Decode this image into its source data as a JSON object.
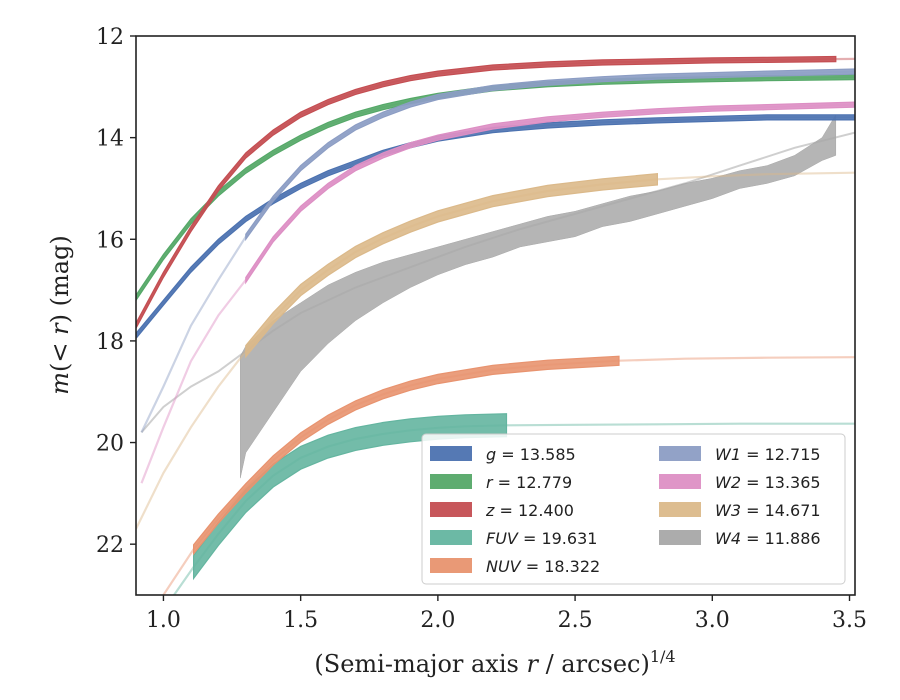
{
  "chart_data": {
    "type": "line",
    "xlabel": "(Semi-major axis r / arcsec)",
    "xlabel_parts": {
      "pre": "(Semi-major axis ",
      "var": "r",
      "post": " / arcsec)",
      "sup": "1/4"
    },
    "ylabel": "m(< r) (mag)",
    "ylabel_parts": {
      "m": "m",
      "mid": "(< ",
      "r": "r",
      "post": ") (mag)"
    },
    "xlim": [
      0.9,
      3.52
    ],
    "ylim": [
      12,
      23
    ],
    "y_inverted": true,
    "xticks": [
      1.0,
      1.5,
      2.0,
      2.5,
      3.0,
      3.5
    ],
    "xtick_labels": [
      "1.0",
      "1.5",
      "2.0",
      "2.5",
      "3.0",
      "3.5"
    ],
    "yticks": [
      12,
      14,
      16,
      18,
      20,
      22
    ],
    "ytick_labels": [
      "12",
      "14",
      "16",
      "18",
      "20",
      "22"
    ],
    "grid": false,
    "legend_position": "lower-right",
    "legend_columns": 2,
    "series": [
      {
        "name": "g",
        "total": "13.585",
        "label": "g = 13.585",
        "color": "#4c72b0",
        "band": 0.1,
        "x_solid_end": 3.52,
        "x": [
          0.9,
          1.0,
          1.1,
          1.2,
          1.3,
          1.4,
          1.5,
          1.6,
          1.7,
          1.8,
          1.9,
          2.0,
          2.2,
          2.4,
          2.6,
          2.8,
          3.0,
          3.2,
          3.52
        ],
        "y": [
          17.9,
          17.25,
          16.6,
          16.05,
          15.6,
          15.25,
          14.95,
          14.7,
          14.5,
          14.3,
          14.15,
          14.02,
          13.85,
          13.76,
          13.7,
          13.66,
          13.63,
          13.6,
          13.6
        ]
      },
      {
        "name": "r",
        "total": "12.779",
        "label": "r = 12.779",
        "color": "#55a868",
        "band": 0.1,
        "x_solid_end": 3.52,
        "x": [
          0.9,
          1.0,
          1.1,
          1.2,
          1.3,
          1.4,
          1.5,
          1.6,
          1.7,
          1.8,
          1.9,
          2.0,
          2.2,
          2.4,
          2.6,
          2.8,
          3.0,
          3.2,
          3.52
        ],
        "y": [
          17.15,
          16.35,
          15.65,
          15.1,
          14.65,
          14.3,
          14.0,
          13.75,
          13.55,
          13.4,
          13.28,
          13.18,
          13.03,
          12.95,
          12.9,
          12.87,
          12.85,
          12.83,
          12.81
        ]
      },
      {
        "name": "z",
        "total": "12.400",
        "label": "z = 12.400",
        "color": "#c44e52",
        "band": 0.1,
        "x_solid_end": 3.45,
        "x": [
          0.9,
          1.0,
          1.1,
          1.2,
          1.3,
          1.4,
          1.5,
          1.6,
          1.7,
          1.8,
          1.9,
          2.0,
          2.2,
          2.4,
          2.6,
          2.8,
          3.0,
          3.2,
          3.52
        ],
        "y": [
          17.7,
          16.7,
          15.8,
          15.0,
          14.35,
          13.9,
          13.55,
          13.3,
          13.1,
          12.95,
          12.83,
          12.74,
          12.62,
          12.56,
          12.52,
          12.5,
          12.48,
          12.47,
          12.45
        ]
      },
      {
        "name": "FUV",
        "total": "19.631",
        "label": "FUV = 19.631",
        "color": "#64b5a0",
        "band": 0.45,
        "x_solid_start": 1.11,
        "x_solid_end": 2.25,
        "x": [
          0.9,
          1.0,
          1.11,
          1.2,
          1.3,
          1.4,
          1.5,
          1.6,
          1.7,
          1.8,
          1.9,
          2.0,
          2.1,
          2.25,
          2.5,
          2.8,
          3.1,
          3.52
        ],
        "y": [
          24.0,
          23.3,
          22.45,
          21.8,
          21.15,
          20.65,
          20.3,
          20.08,
          19.93,
          19.83,
          19.76,
          19.71,
          19.68,
          19.66,
          19.65,
          19.64,
          19.63,
          19.63
        ]
      },
      {
        "name": "NUV",
        "total": "18.322",
        "label": "NUV = 18.322",
        "color": "#e8936f",
        "band": 0.18,
        "x_solid_start": 1.11,
        "x_solid_end": 2.66,
        "x": [
          0.9,
          1.0,
          1.11,
          1.2,
          1.3,
          1.4,
          1.5,
          1.6,
          1.7,
          1.8,
          1.9,
          2.0,
          2.2,
          2.4,
          2.66,
          2.9,
          3.2,
          3.52
        ],
        "y": [
          23.8,
          23.0,
          22.1,
          21.5,
          20.9,
          20.35,
          19.9,
          19.55,
          19.27,
          19.05,
          18.88,
          18.75,
          18.57,
          18.47,
          18.39,
          18.35,
          18.33,
          18.32
        ]
      },
      {
        "name": "W1",
        "total": "12.715",
        "label": "W1 = 12.715",
        "color": "#8c9dc4",
        "band": 0.1,
        "x_solid_start": 1.3,
        "x_solid_end": 3.52,
        "x": [
          0.92,
          1.0,
          1.1,
          1.2,
          1.3,
          1.4,
          1.5,
          1.6,
          1.7,
          1.8,
          1.9,
          2.0,
          2.2,
          2.4,
          2.6,
          2.8,
          3.0,
          3.2,
          3.52
        ],
        "y": [
          19.8,
          18.9,
          17.7,
          16.8,
          15.95,
          15.2,
          14.6,
          14.15,
          13.8,
          13.55,
          13.35,
          13.2,
          13.02,
          12.92,
          12.85,
          12.8,
          12.77,
          12.74,
          12.7
        ]
      },
      {
        "name": "W2",
        "total": "13.365",
        "label": "W2 = 13.365",
        "color": "#dd8fc4",
        "band": 0.1,
        "x_solid_start": 1.3,
        "x_solid_end": 3.52,
        "x": [
          0.92,
          1.0,
          1.1,
          1.2,
          1.3,
          1.4,
          1.5,
          1.6,
          1.7,
          1.8,
          1.9,
          2.0,
          2.2,
          2.4,
          2.6,
          2.8,
          3.0,
          3.2,
          3.52
        ],
        "y": [
          20.8,
          19.7,
          18.4,
          17.5,
          16.8,
          16.0,
          15.4,
          14.95,
          14.6,
          14.35,
          14.15,
          14.0,
          13.78,
          13.64,
          13.55,
          13.48,
          13.43,
          13.4,
          13.35
        ]
      },
      {
        "name": "W3",
        "total": "14.671",
        "label": "W3 = 14.671",
        "color": "#dbb98a",
        "band": 0.22,
        "x_solid_start": 1.3,
        "x_solid_end": 2.8,
        "x": [
          0.9,
          1.0,
          1.1,
          1.2,
          1.3,
          1.4,
          1.5,
          1.6,
          1.7,
          1.8,
          1.9,
          2.0,
          2.2,
          2.4,
          2.6,
          2.8,
          3.0,
          3.2,
          3.52
        ],
        "y": [
          21.7,
          20.6,
          19.7,
          18.9,
          18.2,
          17.55,
          17.0,
          16.6,
          16.25,
          15.98,
          15.75,
          15.55,
          15.25,
          15.05,
          14.92,
          14.82,
          14.76,
          14.72,
          14.69
        ]
      }
    ],
    "w4": {
      "name": "W4",
      "total": "11.886",
      "label": "W4 = 11.886",
      "color": "#a8a8a8",
      "faint_x": [
        0.92,
        1.0,
        1.1,
        1.2,
        1.3,
        1.4,
        1.5,
        1.7,
        1.9,
        2.1,
        2.3,
        2.5,
        2.7,
        2.9,
        3.1,
        3.3,
        3.52
      ],
      "faint_y": [
        19.8,
        19.3,
        18.9,
        18.6,
        18.2,
        17.8,
        17.45,
        16.95,
        16.55,
        16.15,
        15.8,
        15.5,
        15.2,
        14.9,
        14.55,
        14.2,
        13.9
      ],
      "band_x": [
        1.28,
        1.3,
        1.4,
        1.5,
        1.6,
        1.7,
        1.8,
        1.9,
        2.0,
        2.1,
        2.2,
        2.3,
        2.4,
        2.5,
        2.6,
        2.7,
        2.8,
        2.9,
        3.0,
        3.1,
        3.2,
        3.3,
        3.4,
        3.45
      ],
      "band_upper": [
        18.3,
        18.1,
        17.6,
        17.25,
        16.9,
        16.65,
        16.45,
        16.3,
        16.15,
        16.0,
        15.85,
        15.7,
        15.55,
        15.45,
        15.3,
        15.15,
        15.05,
        14.9,
        14.8,
        14.65,
        14.55,
        14.35,
        14.0,
        13.55
      ],
      "band_lower": [
        20.7,
        20.2,
        19.4,
        18.6,
        18.05,
        17.6,
        17.25,
        16.95,
        16.7,
        16.5,
        16.35,
        16.15,
        16.05,
        15.95,
        15.75,
        15.65,
        15.5,
        15.35,
        15.2,
        15.0,
        14.9,
        14.75,
        14.45,
        14.35
      ]
    }
  }
}
